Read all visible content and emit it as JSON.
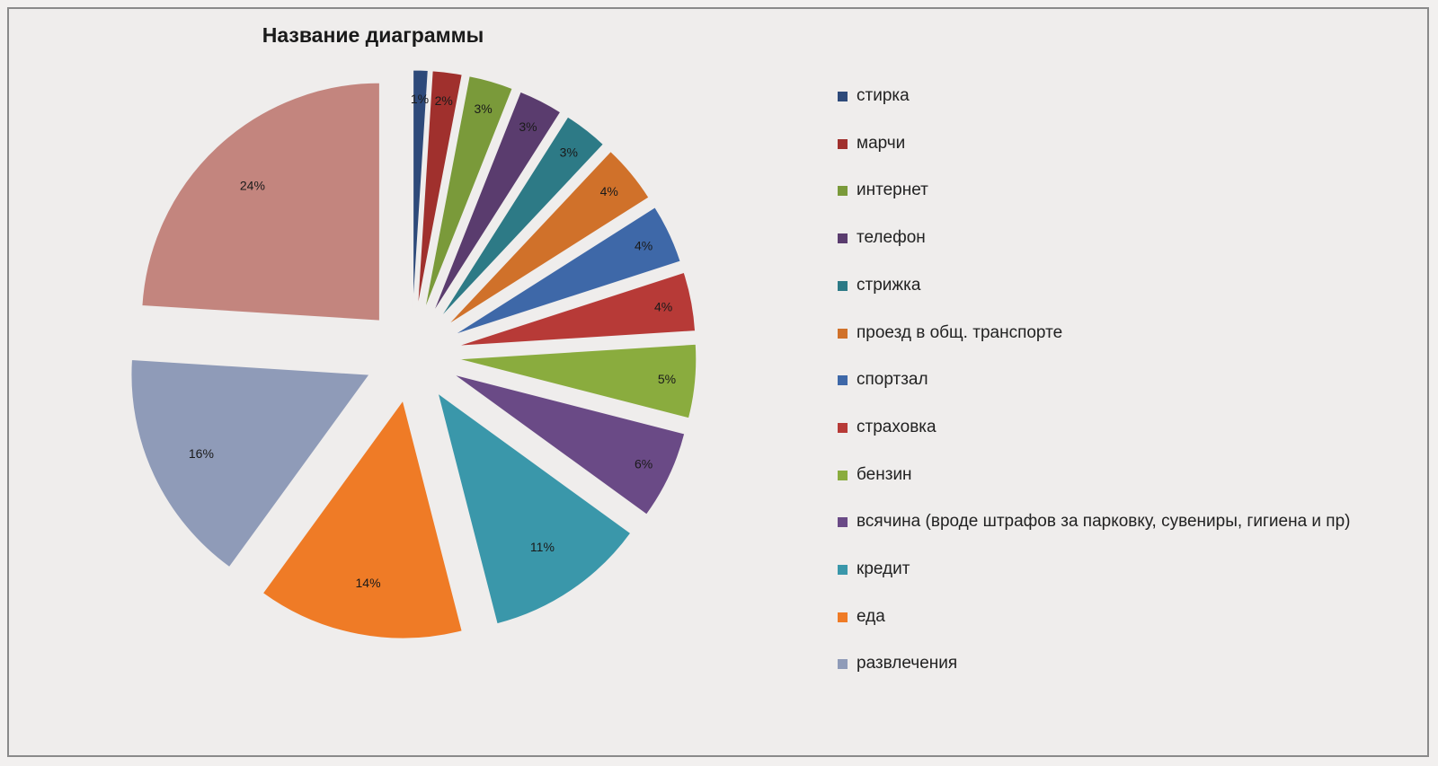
{
  "chart_data": {
    "type": "pie",
    "title": "Название диаграммы",
    "exploded": true,
    "legend_position": "right",
    "categories": [
      "стирка",
      "марчи",
      "интернет",
      "телефон",
      "стрижка",
      "проезд в общ. транспорте",
      "спортзал",
      "страховка",
      "бензин",
      "всячина (вроде штрафов за парковку, сувениры, гигиена и пр)",
      "кредит",
      "еда",
      "развлечения"
    ],
    "values": [
      1,
      2,
      3,
      3,
      3,
      4,
      4,
      4,
      5,
      6,
      11,
      14,
      16
    ],
    "labels": [
      "1%",
      "2%",
      "3%",
      "3%",
      "3%",
      "4%",
      "4%",
      "4%",
      "5%",
      "6%",
      "11%",
      "14%",
      "16%"
    ],
    "unlisted_slice": {
      "value": 24,
      "label": "24%"
    },
    "colors": [
      "#2e4a7a",
      "#a0302d",
      "#7a9a3a",
      "#5a3c6e",
      "#2d7a86",
      "#d0712a",
      "#3e68a8",
      "#b73a37",
      "#8aac3e",
      "#6a4a86",
      "#3a97aa",
      "#ef7b26",
      "#8f9bb8"
    ],
    "unlisted_color": "#c3857e"
  }
}
